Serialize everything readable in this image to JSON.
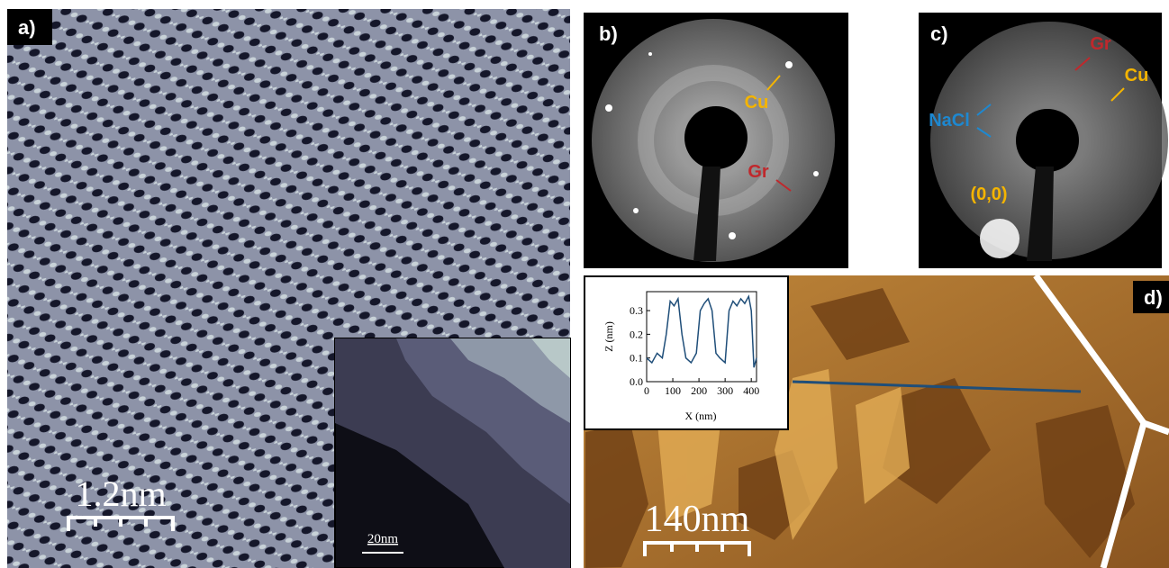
{
  "panels": {
    "a": {
      "label": "a)",
      "scale": "1.2nm",
      "inset_scale": "20nm"
    },
    "b": {
      "label": "b)",
      "cu": "Cu",
      "gr": "Gr"
    },
    "c": {
      "label": "c)",
      "gr": "Gr",
      "cu": "Cu",
      "nacl": "NaCl",
      "origin": "(0,0)"
    },
    "d": {
      "label": "d)",
      "scale": "140nm"
    }
  },
  "chart_data": {
    "type": "line",
    "xlabel": "X (nm)",
    "ylabel": "Z (nm)",
    "x": [
      0,
      20,
      40,
      60,
      75,
      90,
      105,
      120,
      135,
      150,
      170,
      190,
      205,
      220,
      235,
      250,
      265,
      280,
      300,
      315,
      330,
      345,
      360,
      375,
      390,
      400,
      410,
      420
    ],
    "values": [
      0.1,
      0.08,
      0.12,
      0.1,
      0.2,
      0.34,
      0.32,
      0.35,
      0.2,
      0.1,
      0.08,
      0.12,
      0.3,
      0.33,
      0.35,
      0.3,
      0.12,
      0.1,
      0.08,
      0.3,
      0.34,
      0.32,
      0.35,
      0.33,
      0.36,
      0.3,
      0.06,
      0.1
    ],
    "color": "#1f4e79",
    "xlim": [
      0,
      420
    ],
    "ylim": [
      0,
      0.38
    ],
    "xticks": [
      0,
      100,
      200,
      300,
      400
    ],
    "yticks": [
      {
        "value": 0,
        "label": "0.0"
      },
      0.1,
      0.2,
      0.3
    ]
  }
}
